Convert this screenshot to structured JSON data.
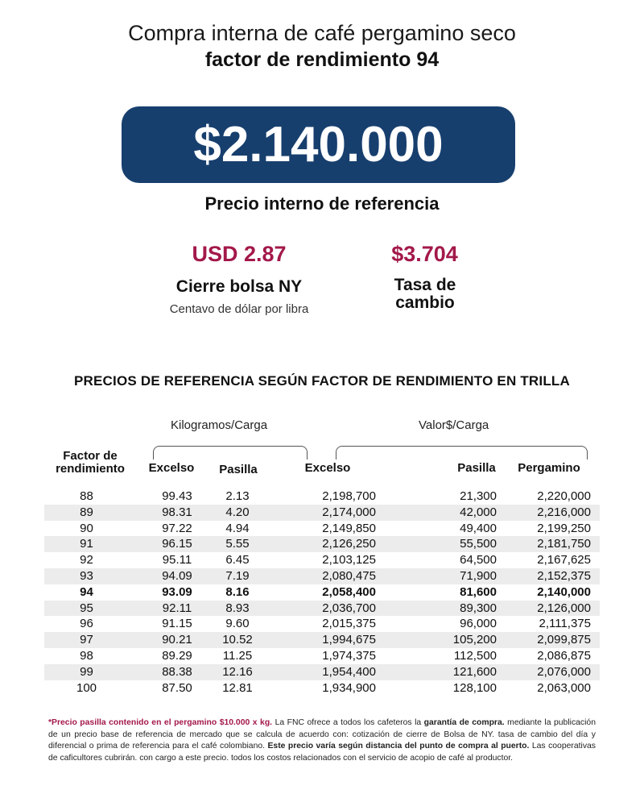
{
  "header": {
    "line1": "Compra interna de café pergamino seco",
    "line2": "factor de rendimiento 94"
  },
  "price": {
    "value": "$2.140.000",
    "caption": "Precio interno de referencia"
  },
  "indicators": {
    "usd_value": "USD 2.87",
    "usd_label": "Cierre bolsa NY",
    "usd_sub": "Centavo de dólar por libra",
    "tasa_value": "$3.704",
    "tasa_label_1": "Tasa de",
    "tasa_label_2": "cambio"
  },
  "colors": {
    "brand_blue": "#173f6e",
    "accent_red": "#a3184a"
  },
  "table": {
    "title": "PRECIOS DE REFERENCIA SEGÚN FACTOR DE RENDIMIENTO EN TRILLA",
    "group_kg": "Kilogramos/Carga",
    "group_valor": "Valor$/Carga",
    "col_factor_1": "Factor de",
    "col_factor_2": "rendimiento",
    "col_excelso_kg": "Excelso",
    "col_pasilla_kg": "Pasilla",
    "col_excelso_val": "Excelso",
    "col_pasilla_val": "Pasilla",
    "col_pergamino": "Pergamino",
    "highlight_factor": "94",
    "rows": [
      [
        "88",
        "99.43",
        "2.13",
        "2,198,700",
        "21,300",
        "2,220,000"
      ],
      [
        "89",
        "98.31",
        "4.20",
        "2,174,000",
        "42,000",
        "2,216,000"
      ],
      [
        "90",
        "97.22",
        "4.94",
        "2,149,850",
        "49,400",
        "2,199,250"
      ],
      [
        "91",
        "96.15",
        "5.55",
        "2,126,250",
        "55,500",
        "2,181,750"
      ],
      [
        "92",
        "95.11",
        "6.45",
        "2,103,125",
        "64,500",
        "2,167,625"
      ],
      [
        "93",
        "94.09",
        "7.19",
        "2,080,475",
        "71,900",
        "2,152,375"
      ],
      [
        "94",
        "93.09",
        "8.16",
        "2,058,400",
        "81,600",
        "2,140,000"
      ],
      [
        "95",
        "92.11",
        "8.93",
        "2,036,700",
        "89,300",
        "2,126,000"
      ],
      [
        "96",
        "91.15",
        "9.60",
        "2,015,375",
        "96,000",
        "2,111,375"
      ],
      [
        "97",
        "90.21",
        "10.52",
        "1,994,675",
        "105,200",
        "2,099,875"
      ],
      [
        "98",
        "89.29",
        "11.25",
        "1,974,375",
        "112,500",
        "2,086,875"
      ],
      [
        "99",
        "88.38",
        "12.16",
        "1,954,400",
        "121,600",
        "2,076,000"
      ],
      [
        "100",
        "87.50",
        "12.81",
        "1,934,900",
        "128,100",
        "2,063,000"
      ]
    ]
  },
  "footnote": {
    "part1": "*Precio pasilla contenido en el pergamino $10.000 x kg.",
    "part2": " La FNC ofrece a todos los cafeteros la ",
    "part3": "garantía de compra.",
    "part4": " mediante la publicación de un precio base de referencia de mercado que se calcula de acuerdo con: cotización de cierre de Bolsa de NY. tasa de cambio del día y diferencial o prima de referencia para el café colombiano. ",
    "part5": "Este precio varía según distancia del punto de compra al puerto.",
    "part6": " Las cooperativas de caficultores cubrirán. con cargo a este precio. todos los costos relacionados con el servicio de acopio de café al productor."
  }
}
